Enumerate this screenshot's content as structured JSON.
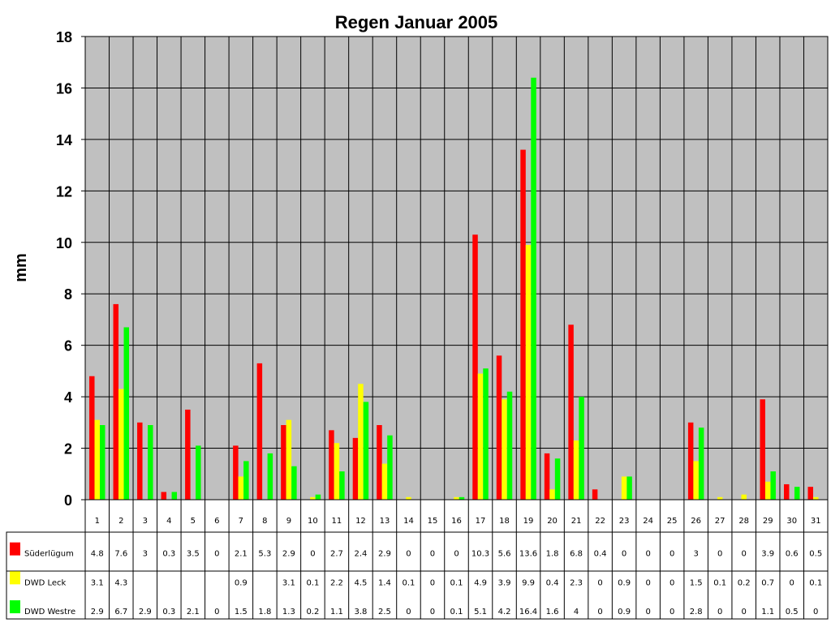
{
  "chart_data": {
    "type": "bar",
    "title": "Regen Januar 2005",
    "ylabel": "mm",
    "ylim": [
      0,
      18
    ],
    "yticks": [
      "0",
      "2",
      "4",
      "6",
      "8",
      "10",
      "12",
      "14",
      "16",
      "18"
    ],
    "grid": true,
    "legend": "data-table-left",
    "categories": [
      "1",
      "2",
      "3",
      "4",
      "5",
      "6",
      "7",
      "8",
      "9",
      "10",
      "11",
      "12",
      "13",
      "14",
      "15",
      "16",
      "17",
      "18",
      "19",
      "20",
      "21",
      "22",
      "23",
      "24",
      "25",
      "26",
      "27",
      "28",
      "29",
      "30",
      "31"
    ],
    "series": [
      {
        "name": "Süderlügum",
        "color": "#ff0000",
        "values": [
          4.8,
          7.6,
          3,
          0.3,
          3.5,
          0,
          2.1,
          5.3,
          2.9,
          0,
          2.7,
          2.4,
          2.9,
          0,
          0,
          0,
          10.3,
          5.6,
          13.6,
          1.8,
          6.8,
          0.4,
          0,
          0,
          0,
          3,
          0,
          0,
          3.9,
          0.6,
          0.5
        ],
        "labels": [
          "4.8",
          "7.6",
          "3",
          "0.3",
          "3.5",
          "0",
          "2.1",
          "5.3",
          "2.9",
          "0",
          "2.7",
          "2.4",
          "2.9",
          "0",
          "0",
          "0",
          "10.3",
          "5.6",
          "13.6",
          "1.8",
          "6.8",
          "0.4",
          "0",
          "0",
          "0",
          "3",
          "0",
          "0",
          "3.9",
          "0.6",
          "0.5"
        ]
      },
      {
        "name": "DWD Leck",
        "color": "#ffff00",
        "values": [
          3.1,
          4.3,
          null,
          null,
          null,
          null,
          0.9,
          null,
          3.1,
          0.1,
          2.2,
          4.5,
          1.4,
          0.1,
          0,
          0.1,
          4.9,
          3.9,
          9.9,
          0.4,
          2.3,
          0,
          0.9,
          0,
          0,
          1.5,
          0.1,
          0.2,
          0.7,
          0,
          0.1
        ],
        "labels": [
          "3.1",
          "4.3",
          "",
          "",
          "",
          "",
          "0.9",
          "",
          "3.1",
          "0.1",
          "2.2",
          "4.5",
          "1.4",
          "0.1",
          "0",
          "0.1",
          "4.9",
          "3.9",
          "9.9",
          "0.4",
          "2.3",
          "0",
          "0.9",
          "0",
          "0",
          "1.5",
          "0.1",
          "0.2",
          "0.7",
          "0",
          "0.1"
        ]
      },
      {
        "name": "DWD Westre",
        "color": "#00ff00",
        "values": [
          2.9,
          6.7,
          2.9,
          0.3,
          2.1,
          0,
          1.5,
          1.8,
          1.3,
          0.2,
          1.1,
          3.8,
          2.5,
          0,
          0,
          0.1,
          5.1,
          4.2,
          16.4,
          1.6,
          4,
          0,
          0.9,
          0,
          0,
          2.8,
          0,
          0,
          1.1,
          0.5,
          0
        ],
        "labels": [
          "2.9",
          "6.7",
          "2.9",
          "0.3",
          "2.1",
          "0",
          "1.5",
          "1.8",
          "1.3",
          "0.2",
          "1.1",
          "3.8",
          "2.5",
          "0",
          "0",
          "0.1",
          "5.1",
          "4.2",
          "16.4",
          "1.6",
          "4",
          "0",
          "0.9",
          "0",
          "0",
          "2.8",
          "0",
          "0",
          "1.1",
          "0.5",
          "0"
        ]
      }
    ]
  }
}
